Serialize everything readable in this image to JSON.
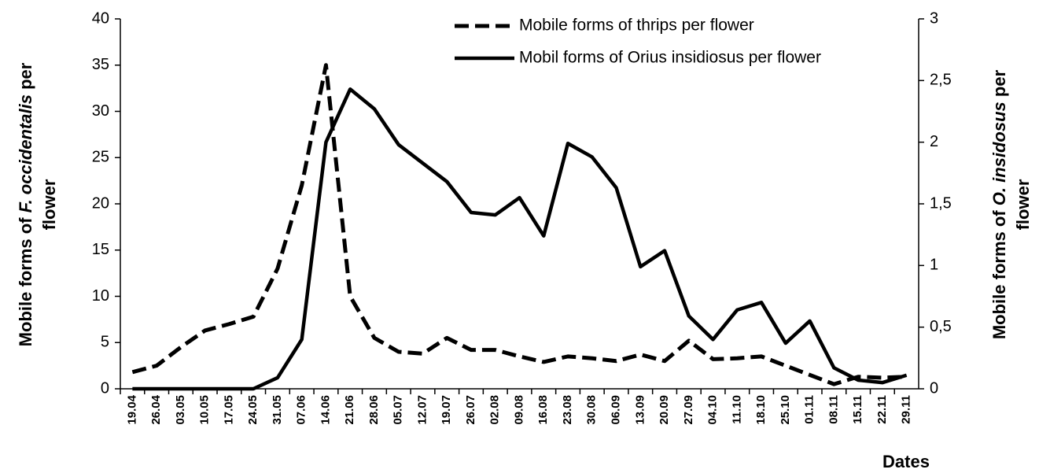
{
  "chart_data": {
    "type": "line",
    "y_label": [
      "Mobile forms of ",
      "F. occidentalis",
      " per",
      "flower"
    ],
    "y2_label": [
      "Mobile forms of ",
      "O. insidosus",
      " per",
      "flower"
    ],
    "x_label": "Dates",
    "legend": "upper right",
    "categories": [
      "19.04",
      "26.04",
      "03.05",
      "10.05",
      "17.05",
      "24.05",
      "31.05",
      "07.06",
      "14.06",
      "21.06",
      "28.06",
      "05.07",
      "12.07",
      "19.07",
      "26.07",
      "02.08",
      "09.08",
      "16.08",
      "23.08",
      "30.08",
      "06.09",
      "13.09",
      "20.09",
      "27.09",
      "04.10",
      "11.10",
      "18.10",
      "25.10",
      "01.11",
      "08.11",
      "15.11",
      "22.11",
      "29.11"
    ],
    "series": [
      {
        "name": "Mobile forms of thrips per flower",
        "color": "#000000",
        "dashed": true,
        "values": [
          1.8,
          2.5,
          4.5,
          6.3,
          7,
          7.8,
          13,
          22,
          35,
          10,
          5.5,
          4,
          3.8,
          5.5,
          4.2,
          4.2,
          3.5,
          2.9,
          3.5,
          3.3,
          3,
          3.7,
          3,
          5.2,
          3.2,
          3.3,
          3.5,
          2.5,
          1.5,
          0.5,
          1.3,
          1.2,
          1.3
        ]
      },
      {
        "name": "Mobil forms of Orius insidiosus per flower",
        "color": "#000000",
        "dashed": false,
        "axis": "y2",
        "values": [
          0,
          0,
          0,
          0,
          0,
          0,
          0.09,
          0.4,
          2.0,
          2.43,
          2.27,
          1.98,
          1.83,
          1.68,
          1.43,
          1.41,
          1.55,
          1.24,
          1.99,
          1.88,
          1.63,
          0.99,
          1.12,
          0.59,
          0.4,
          0.64,
          0.7,
          0.37,
          0.55,
          0.17,
          0.07,
          0.05,
          0.11
        ]
      }
    ],
    "ylim": [
      0,
      40
    ],
    "yticks": [
      0,
      5,
      10,
      15,
      20,
      25,
      30,
      35,
      40
    ],
    "y2lim": [
      0,
      3
    ],
    "y2ticks": [
      0,
      {
        "value": 0.5,
        "label": "0,5"
      },
      1,
      {
        "value": 1.5,
        "label": "1,5"
      },
      2,
      {
        "value": 2.5,
        "label": "2,5"
      },
      3
    ]
  }
}
